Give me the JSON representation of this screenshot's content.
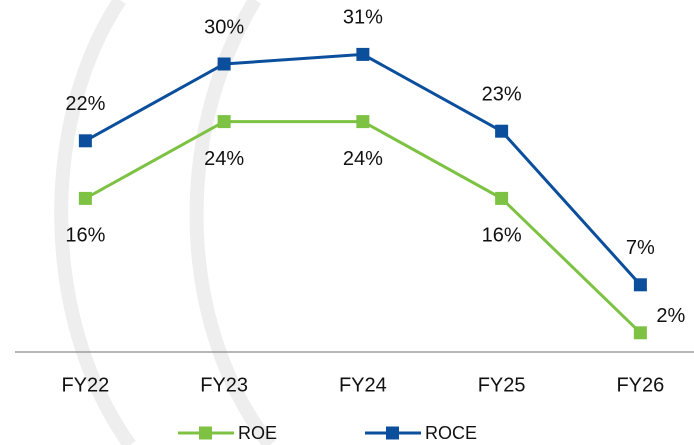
{
  "chart_data": {
    "type": "line",
    "categories": [
      "FY22",
      "FY23",
      "FY24",
      "FY25",
      "FY26"
    ],
    "series": [
      {
        "name": "ROE",
        "color": "#7dc243",
        "values": [
          16,
          24,
          24,
          16,
          2
        ],
        "value_labels": [
          "16%",
          "24%",
          "24%",
          "16%",
          "2%"
        ]
      },
      {
        "name": "ROCE",
        "color": "#0b4f9c",
        "values": [
          22,
          30,
          31,
          23,
          7
        ],
        "value_labels": [
          "22%",
          "30%",
          "31%",
          "23%",
          "7%"
        ]
      }
    ],
    "ylim": [
      0,
      36
    ],
    "grid": false
  }
}
